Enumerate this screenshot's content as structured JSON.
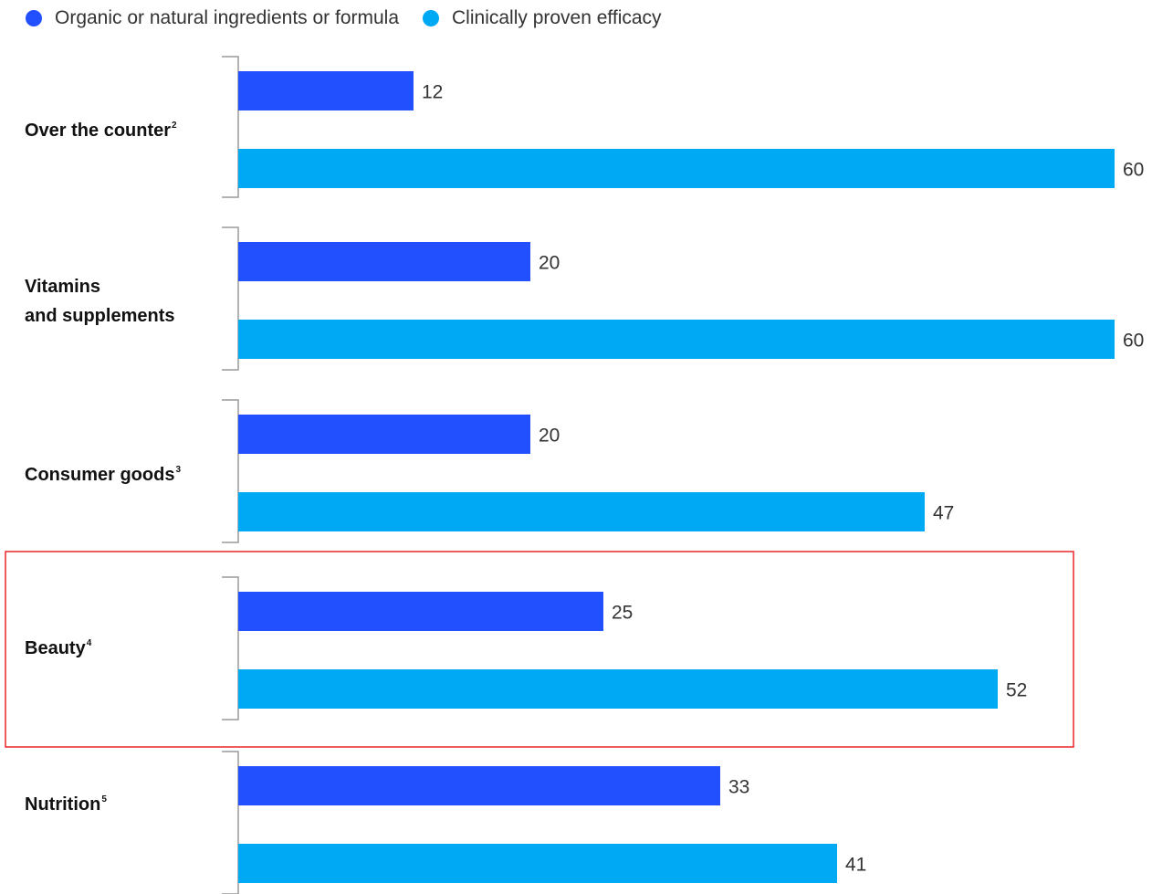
{
  "legend": [
    {
      "label": "Organic or natural ingredients or formula",
      "color": "#2350ff"
    },
    {
      "label": "Clinically proven efficacy",
      "color": "#00a9f4"
    }
  ],
  "chart_data": {
    "type": "bar",
    "orientation": "horizontal",
    "title": "",
    "categories": [
      {
        "label": "Over the counter",
        "note": "2"
      },
      {
        "label": "Vitamins and supplements",
        "lines": [
          "Vitamins",
          "and supplements"
        ],
        "note": ""
      },
      {
        "label": "Consumer goods",
        "note": "3"
      },
      {
        "label": "Beauty",
        "note": "4"
      },
      {
        "label": "Nutrition",
        "note": "5"
      }
    ],
    "series": [
      {
        "name": "Organic or natural ingredients or formula",
        "color": "#2350ff",
        "values": [
          12,
          20,
          20,
          25,
          33
        ]
      },
      {
        "name": "Clinically proven efficacy",
        "color": "#00a9f4",
        "values": [
          60,
          60,
          47,
          52,
          41
        ]
      }
    ],
    "value_labels": [
      [
        "12",
        "20",
        "20",
        "25",
        "33"
      ],
      [
        "60",
        "60",
        "47",
        "52",
        "41"
      ]
    ],
    "xlim": [
      0,
      60
    ],
    "grid": false,
    "legend_position": "top-left",
    "highlighted_category": "Beauty",
    "highlight_color": "#e8262b"
  }
}
